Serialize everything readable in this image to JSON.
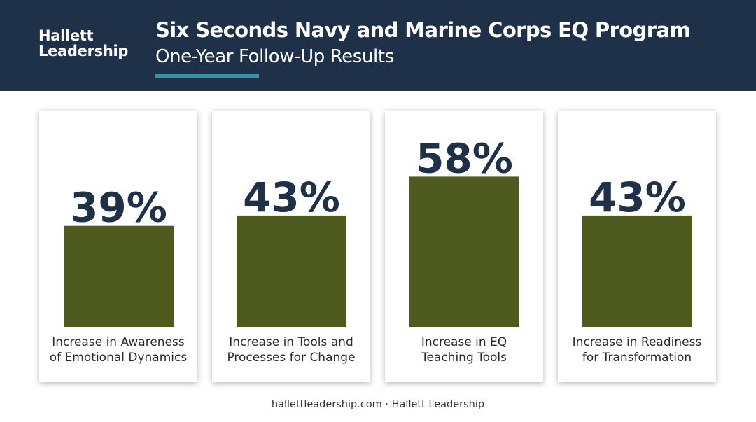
{
  "header": {
    "logo_line1": "Hallett",
    "logo_line2": "Leadership",
    "title": "Six Seconds Navy and Marine Corps EQ Program",
    "subtitle": "One-Year Follow-Up Results"
  },
  "footer": {
    "text": "hallettleadership.com · Hallett Leadership"
  },
  "colors": {
    "header_bg": "#1f3049",
    "accent": "#3d8fa8",
    "bar": "#4f5a1f",
    "value_text": "#1f3049"
  },
  "chart_data": {
    "type": "bar",
    "categories": [
      "Increase in Awareness\nof Emotional Dynamics",
      "Increase in Tools and\nProcesses for Change",
      "Increase in EQ\nTeaching Tools",
      "Increase in Readiness\nfor Transformation"
    ],
    "values": [
      39,
      43,
      58,
      43
    ],
    "value_labels": [
      "39%",
      "43%",
      "58%",
      "43%"
    ],
    "title": "",
    "xlabel": "",
    "ylabel": "",
    "ylim": [
      0,
      100
    ],
    "grid": false,
    "legend": "none"
  }
}
